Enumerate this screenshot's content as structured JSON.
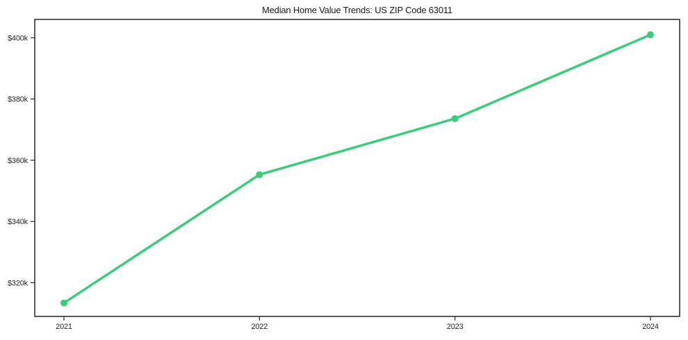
{
  "chart_data": {
    "type": "line",
    "title": "Median Home Value Trends: US ZIP Code 63011",
    "categories": [
      "2021",
      "2022",
      "2023",
      "2024"
    ],
    "series": [
      {
        "name": "median-home-value",
        "values": [
          313.4,
          355.3,
          373.6,
          401.0
        ],
        "color": "#3dcb7c"
      }
    ],
    "values_unit": "USD thousands (labels shown as $Nk)",
    "ylim": [
      309,
      406
    ],
    "yticks": [
      {
        "value": 320,
        "label": "$320k"
      },
      {
        "value": 340,
        "label": "$340k"
      },
      {
        "value": 360,
        "label": "$360k"
      },
      {
        "value": 380,
        "label": "$380k"
      },
      {
        "value": 400,
        "label": "$400k"
      }
    ],
    "xlabel": "",
    "ylabel": "",
    "grid": false,
    "legend_position": "none",
    "marker": "circle"
  },
  "colors": {
    "line": "#3dcb7c",
    "axis": "#262626",
    "text": "#1a1a1a",
    "background": "#ffffff"
  }
}
